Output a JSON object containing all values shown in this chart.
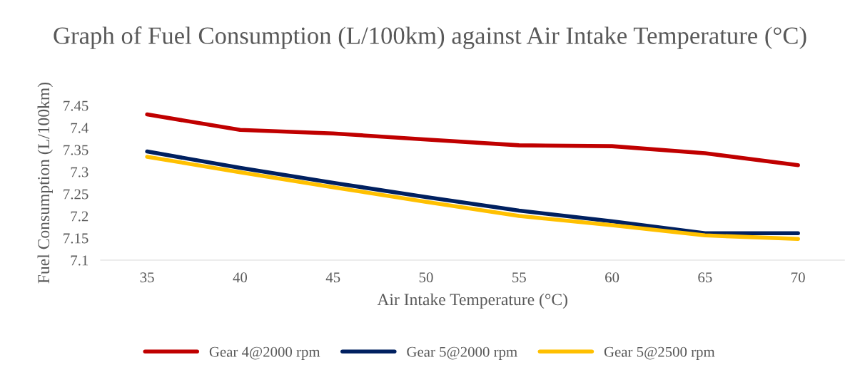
{
  "chart_data": {
    "type": "line",
    "title": "Graph of Fuel Consumption (L/100km) against Air Intake Temperature (°C)",
    "xlabel": "Air Intake Temperature (°C)",
    "ylabel": "Fuel Consumption (L/100km)",
    "categories": [
      "35",
      "40",
      "45",
      "50",
      "55",
      "60",
      "65",
      "70"
    ],
    "series": [
      {
        "name": "Gear 4@2000 rpm",
        "color": "#c00000",
        "values": [
          7.43,
          7.395,
          7.387,
          7.373,
          7.36,
          7.358,
          7.342,
          7.315
        ]
      },
      {
        "name": "Gear 5@2000 rpm",
        "color": "#002060",
        "values": [
          7.346,
          7.309,
          7.275,
          7.243,
          7.212,
          7.188,
          7.161,
          7.161
        ]
      },
      {
        "name": "Gear 5@2500 rpm",
        "color": "#ffc000",
        "values": [
          7.334,
          7.299,
          7.265,
          7.232,
          7.2,
          7.179,
          7.156,
          7.148
        ]
      }
    ],
    "ylim": [
      7.1,
      7.45
    ],
    "yticks": [
      7.1,
      7.15,
      7.2,
      7.25,
      7.3,
      7.35,
      7.4,
      7.45
    ],
    "grid": false,
    "legend": "bottom",
    "marker": "none",
    "line_style": "solid"
  }
}
